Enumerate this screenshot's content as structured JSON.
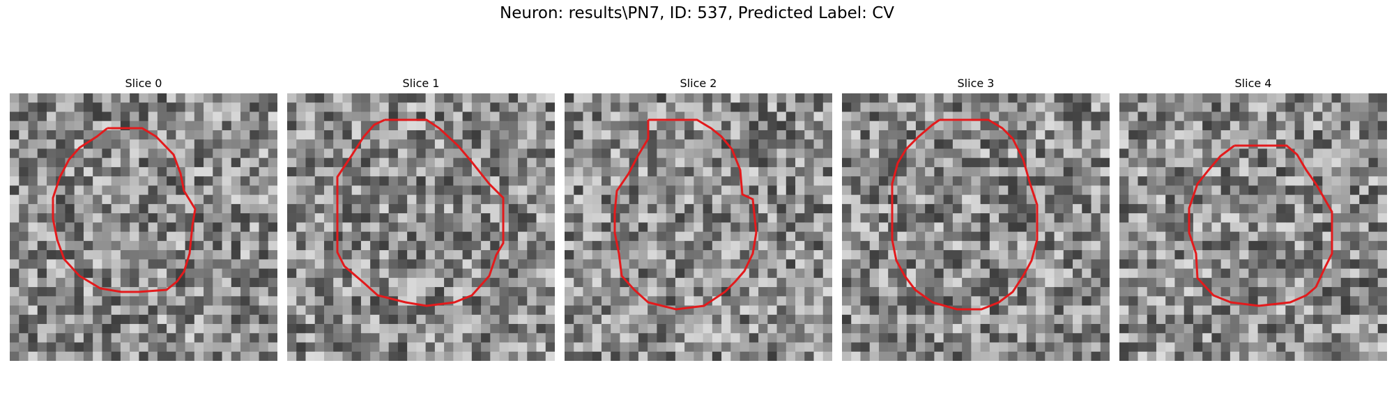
{
  "figure": {
    "title": "Neuron: results\\PN7, ID: 537, Predicted Label: CV",
    "outline_color": "#e31a1c"
  },
  "panels": [
    {
      "title": "Slice 0"
    },
    {
      "title": "Slice 1"
    },
    {
      "title": "Slice 2"
    },
    {
      "title": "Slice 3"
    },
    {
      "title": "Slice 4"
    }
  ]
}
